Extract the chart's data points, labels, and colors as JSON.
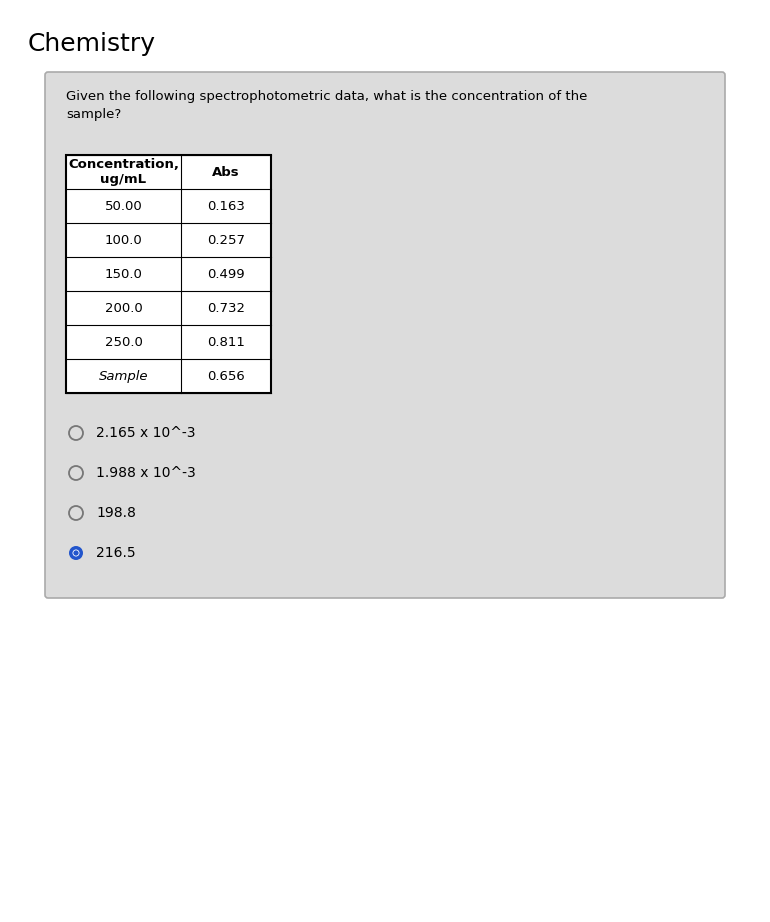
{
  "title": "Chemistry",
  "question": "Given the following spectrophotometric data, what is the concentration of the\nsample?",
  "col_headers": [
    "Concentration,\nug/mL",
    "Abs"
  ],
  "table_data": [
    [
      "50.00",
      "0.163"
    ],
    [
      "100.0",
      "0.257"
    ],
    [
      "150.0",
      "0.499"
    ],
    [
      "200.0",
      "0.732"
    ],
    [
      "250.0",
      "0.811"
    ],
    [
      "Sample",
      "0.656"
    ]
  ],
  "options": [
    {
      "text": "2.165 x 10^-3",
      "selected": false
    },
    {
      "text": "1.988 x 10^-3",
      "selected": false
    },
    {
      "text": "198.8",
      "selected": false
    },
    {
      "text": "216.5",
      "selected": true
    }
  ],
  "title_fontsize": 18,
  "question_fontsize": 9.5,
  "table_fontsize": 9.5,
  "option_fontsize": 10,
  "selected_color": "#2255cc",
  "card_bg": "#dcdcdc",
  "card_edge": "#aaaaaa",
  "table_bg": "#ffffff",
  "option_circle_color": "#777777"
}
